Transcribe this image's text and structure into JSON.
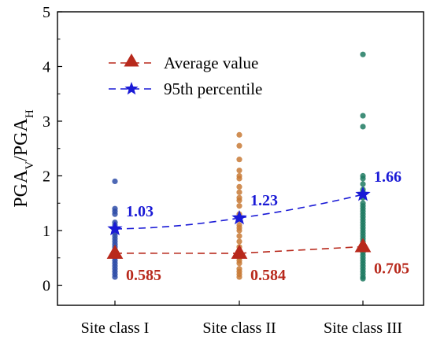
{
  "chart_data": {
    "type": "scatter",
    "categories": [
      "Site class I",
      "Site class II",
      "Site class III"
    ],
    "ylabel": "PGA_V/PGA_H",
    "ylim": [
      0,
      5
    ],
    "yticks": [
      "0",
      "1",
      "2",
      "3",
      "4",
      "5"
    ],
    "grid": false,
    "legend_position": "top-left",
    "scatter_points": [
      {
        "category": "Site class I",
        "color": "#2f4ea8",
        "values": [
          0.15,
          0.2,
          0.25,
          0.3,
          0.35,
          0.4,
          0.45,
          0.5,
          0.55,
          0.6,
          0.65,
          0.7,
          0.75,
          0.8,
          0.85,
          0.9,
          0.95,
          1.0,
          1.05,
          1.1,
          1.15,
          1.3,
          1.35,
          1.4,
          1.9
        ]
      },
      {
        "category": "Site class II",
        "color": "#c87a36",
        "values": [
          0.15,
          0.2,
          0.25,
          0.3,
          0.4,
          0.45,
          0.5,
          0.6,
          0.7,
          0.8,
          0.9,
          1.0,
          1.05,
          1.1,
          1.2,
          1.3,
          1.45,
          1.55,
          1.6,
          1.7,
          1.8,
          1.95,
          2.0,
          2.1,
          2.3,
          2.55,
          2.75
        ]
      },
      {
        "category": "Site class III",
        "color": "#1f7a62",
        "values": [
          0.12,
          0.15,
          0.2,
          0.25,
          0.3,
          0.35,
          0.4,
          0.45,
          0.5,
          0.55,
          0.6,
          0.65,
          0.7,
          0.75,
          0.8,
          0.85,
          0.9,
          0.95,
          1.0,
          1.05,
          1.1,
          1.15,
          1.2,
          1.25,
          1.3,
          1.35,
          1.4,
          1.45,
          1.5,
          1.6,
          1.7,
          1.75,
          1.85,
          1.95,
          2.0,
          2.9,
          3.1,
          4.22
        ]
      }
    ],
    "series": [
      {
        "name": "Average value",
        "color": "#b8291c",
        "marker": "triangle",
        "values": [
          0.585,
          0.584,
          0.705
        ],
        "labels": [
          "0.585",
          "0.584",
          "0.705"
        ]
      },
      {
        "name": "95th percentile",
        "color": "#1a1ad6",
        "marker": "star",
        "values": [
          1.03,
          1.23,
          1.66
        ],
        "labels": [
          "1.03",
          "1.23",
          "1.66"
        ]
      }
    ]
  }
}
